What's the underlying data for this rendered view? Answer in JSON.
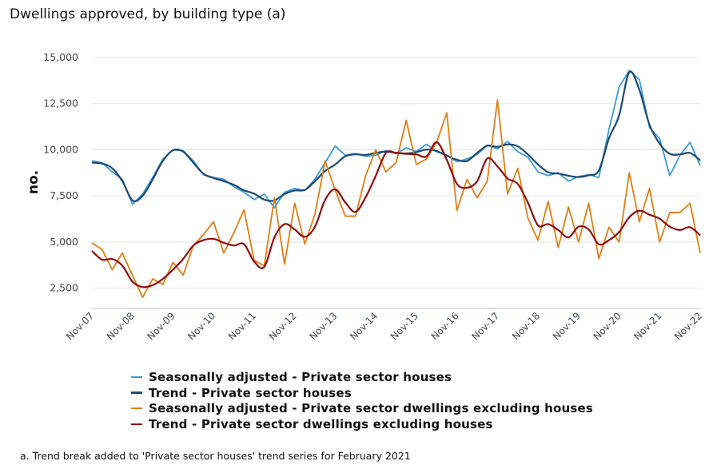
{
  "title": "Dwellings approved, by building type (a)",
  "footnote": "a. Trend break added to 'Private sector houses' trend series for February 2021",
  "chart_data": {
    "type": "line",
    "title": "Dwellings approved, by building type (a)",
    "xlabel": "",
    "ylabel": "no.",
    "ylim": [
      1400,
      15000
    ],
    "yticks": [
      2500,
      5000,
      7500,
      10000,
      12500,
      15000
    ],
    "ytick_labels": [
      "2,500",
      "5,000",
      "7,500",
      "10,000",
      "12,500",
      "15,000"
    ],
    "xtick_labels": [
      "Nov-07",
      "Nov-08",
      "Nov-09",
      "Nov-10",
      "Nov-11",
      "Nov-12",
      "Nov-13",
      "Nov-14",
      "Nov-15",
      "Nov-16",
      "Nov-17",
      "Nov-18",
      "Nov-19",
      "Nov-20",
      "Nov-21",
      "Nov-22"
    ],
    "grid": true,
    "legend_placement": "bottom",
    "x": [
      "Nov-07",
      "Feb-08",
      "May-08",
      "Aug-08",
      "Nov-08",
      "Feb-09",
      "May-09",
      "Aug-09",
      "Nov-09",
      "Feb-10",
      "May-10",
      "Aug-10",
      "Nov-10",
      "Feb-11",
      "May-11",
      "Aug-11",
      "Nov-11",
      "Feb-12",
      "May-12",
      "Aug-12",
      "Nov-12",
      "Feb-13",
      "May-13",
      "Aug-13",
      "Nov-13",
      "Feb-14",
      "May-14",
      "Aug-14",
      "Nov-14",
      "Feb-15",
      "May-15",
      "Aug-15",
      "Nov-15",
      "Feb-16",
      "May-16",
      "Aug-16",
      "Nov-16",
      "Feb-17",
      "May-17",
      "Aug-17",
      "Nov-17",
      "Feb-18",
      "May-18",
      "Aug-18",
      "Nov-18",
      "Feb-19",
      "May-19",
      "Aug-19",
      "Nov-19",
      "Feb-20",
      "May-20",
      "Aug-20",
      "Nov-20",
      "Feb-21",
      "May-21",
      "Aug-21",
      "Nov-21",
      "Feb-22",
      "May-22",
      "Aug-22",
      "Nov-22"
    ],
    "series": [
      {
        "name": "Seasonally adjusted - Private sector houses",
        "color": "#3b9ad6",
        "smooth": false,
        "values": [
          9400,
          9300,
          8800,
          8400,
          7050,
          7600,
          8500,
          9500,
          10000,
          9950,
          9400,
          8650,
          8500,
          8400,
          8000,
          7700,
          7300,
          7600,
          6850,
          7700,
          7900,
          7800,
          8400,
          9300,
          10200,
          9700,
          9800,
          9650,
          9700,
          9950,
          9800,
          10100,
          9900,
          10300,
          9900,
          9700,
          9350,
          9500,
          9750,
          10250,
          10050,
          10450,
          9900,
          9600,
          8800,
          8600,
          8750,
          8300,
          8550,
          8650,
          8500,
          11100,
          13400,
          14300,
          13800,
          11200,
          10600,
          8600,
          9700,
          10400,
          9150
        ]
      },
      {
        "name": "Trend - Private sector houses",
        "color": "#1b4a72",
        "smooth": true,
        "values": [
          9300,
          9250,
          9000,
          8300,
          7250,
          7500,
          8400,
          9400,
          9970,
          9900,
          9300,
          8700,
          8470,
          8300,
          8100,
          7800,
          7620,
          7300,
          7250,
          7600,
          7790,
          7820,
          8300,
          8850,
          9200,
          9650,
          9750,
          9720,
          9830,
          9900,
          9830,
          9800,
          9870,
          10010,
          9930,
          9680,
          9460,
          9390,
          9830,
          10220,
          10160,
          10290,
          10190,
          9750,
          9200,
          8780,
          8710,
          8590,
          8520,
          8620,
          8880,
          10620,
          11860,
          14200,
          13240,
          11350,
          10330,
          9780,
          9750,
          9830,
          9420
        ]
      },
      {
        "name": "Seasonally adjusted - Private sector dwellings excluding houses",
        "color": "#e07d14",
        "smooth": false,
        "values": [
          4950,
          4600,
          3500,
          4400,
          3200,
          2000,
          3000,
          2700,
          3900,
          3200,
          4800,
          5400,
          6100,
          4400,
          5500,
          6750,
          4000,
          3700,
          7400,
          3800,
          7100,
          4900,
          6500,
          9400,
          7800,
          6400,
          6400,
          8600,
          10000,
          8800,
          9300,
          11600,
          9200,
          9500,
          10400,
          12000,
          6700,
          8400,
          7400,
          8300,
          12700,
          7600,
          9000,
          6300,
          5100,
          7200,
          4700,
          6900,
          5000,
          7100,
          4100,
          5800,
          5000,
          8750,
          6100,
          7900,
          5000,
          6600,
          6600,
          7100,
          4400
        ]
      },
      {
        "name": "Trend - Private sector dwellings excluding houses",
        "color": "#8e0c0c",
        "smooth": true,
        "values": [
          4520,
          4040,
          4080,
          3720,
          2850,
          2560,
          2660,
          3000,
          3500,
          4080,
          4810,
          5100,
          5170,
          4960,
          4810,
          4880,
          3940,
          3650,
          5250,
          5970,
          5680,
          5280,
          5830,
          7280,
          7860,
          7140,
          6630,
          7430,
          8590,
          9830,
          9830,
          9780,
          9750,
          9640,
          10410,
          9460,
          8150,
          7940,
          8300,
          9530,
          9100,
          8440,
          8150,
          7140,
          5900,
          5970,
          5650,
          5250,
          5830,
          5680,
          4880,
          5100,
          5540,
          6340,
          6700,
          6480,
          6260,
          5830,
          5650,
          5800,
          5360
        ]
      }
    ]
  }
}
